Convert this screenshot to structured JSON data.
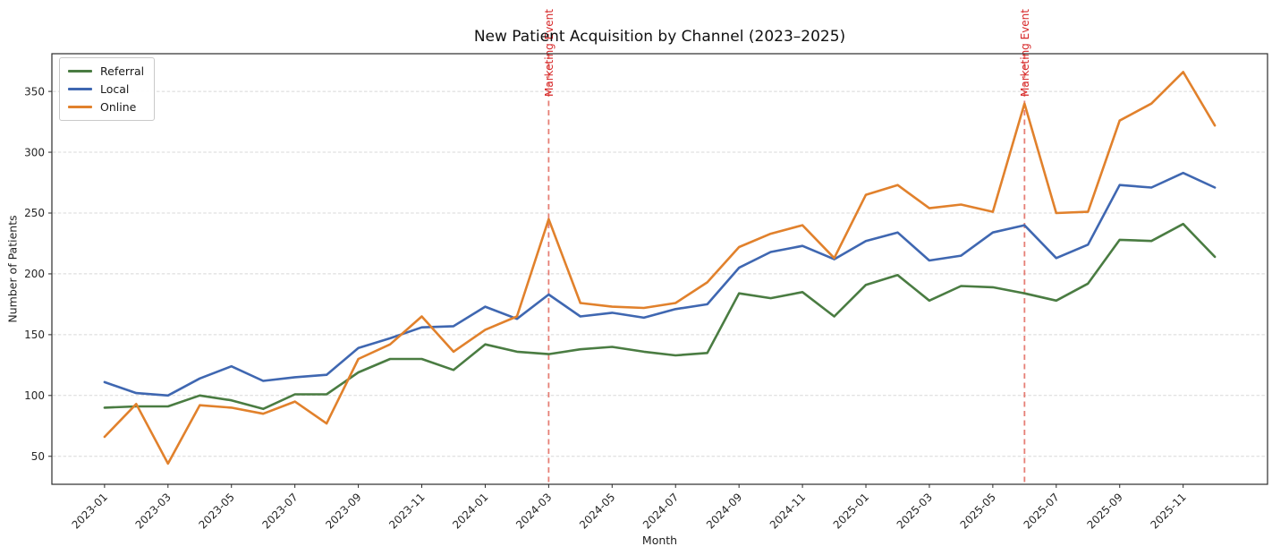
{
  "chart_data": {
    "type": "line",
    "title": "New Patient Acquisition by Channel (2023–2025)",
    "xlabel": "Month",
    "ylabel": "Number of Patients",
    "grid": true,
    "legend_position": "upper left",
    "ylim": [
      27,
      381
    ],
    "y_ticks": [
      50,
      100,
      150,
      200,
      250,
      300,
      350
    ],
    "x_tick_every": 2,
    "x": [
      "2023-01",
      "2023-02",
      "2023-03",
      "2023-04",
      "2023-05",
      "2023-06",
      "2023-07",
      "2023-08",
      "2023-09",
      "2023-10",
      "2023-11",
      "2023-12",
      "2024-01",
      "2024-02",
      "2024-03",
      "2024-04",
      "2024-05",
      "2024-06",
      "2024-07",
      "2024-08",
      "2024-09",
      "2024-10",
      "2024-11",
      "2024-12",
      "2025-01",
      "2025-02",
      "2025-03",
      "2025-04",
      "2025-05",
      "2025-06",
      "2025-07",
      "2025-08",
      "2025-09",
      "2025-10",
      "2025-11",
      "2025-12"
    ],
    "series": [
      {
        "name": "Referral",
        "color": "#4a7c42",
        "values": [
          90,
          91,
          91,
          100,
          96,
          89,
          101,
          101,
          119,
          130,
          130,
          121,
          142,
          136,
          134,
          138,
          140,
          136,
          133,
          135,
          184,
          180,
          185,
          165,
          191,
          199,
          178,
          190,
          189,
          184,
          178,
          192,
          228,
          227,
          241,
          214
        ]
      },
      {
        "name": "Local",
        "color": "#3f67b1",
        "values": [
          111,
          102,
          100,
          114,
          124,
          112,
          115,
          117,
          139,
          147,
          156,
          157,
          173,
          163,
          183,
          165,
          168,
          164,
          171,
          175,
          205,
          218,
          223,
          212,
          227,
          234,
          211,
          215,
          234,
          240,
          213,
          224,
          273,
          271,
          283,
          271
        ]
      },
      {
        "name": "Online",
        "color": "#e1812c",
        "values": [
          66,
          93,
          44,
          92,
          90,
          85,
          95,
          77,
          130,
          142,
          165,
          136,
          154,
          165,
          245,
          176,
          173,
          172,
          176,
          193,
          222,
          233,
          240,
          213,
          265,
          273,
          254,
          257,
          251,
          340,
          250,
          251,
          326,
          340,
          366,
          322
        ]
      }
    ],
    "events": [
      {
        "x": "2024-03",
        "label": "Marketing Event"
      },
      {
        "x": "2025-06",
        "label": "Marketing Event"
      }
    ],
    "event_line_color": "#e06055",
    "event_text_color": "#d62728",
    "grid_color": "#d8d8d8",
    "spine_color": "#2b2b2b"
  }
}
